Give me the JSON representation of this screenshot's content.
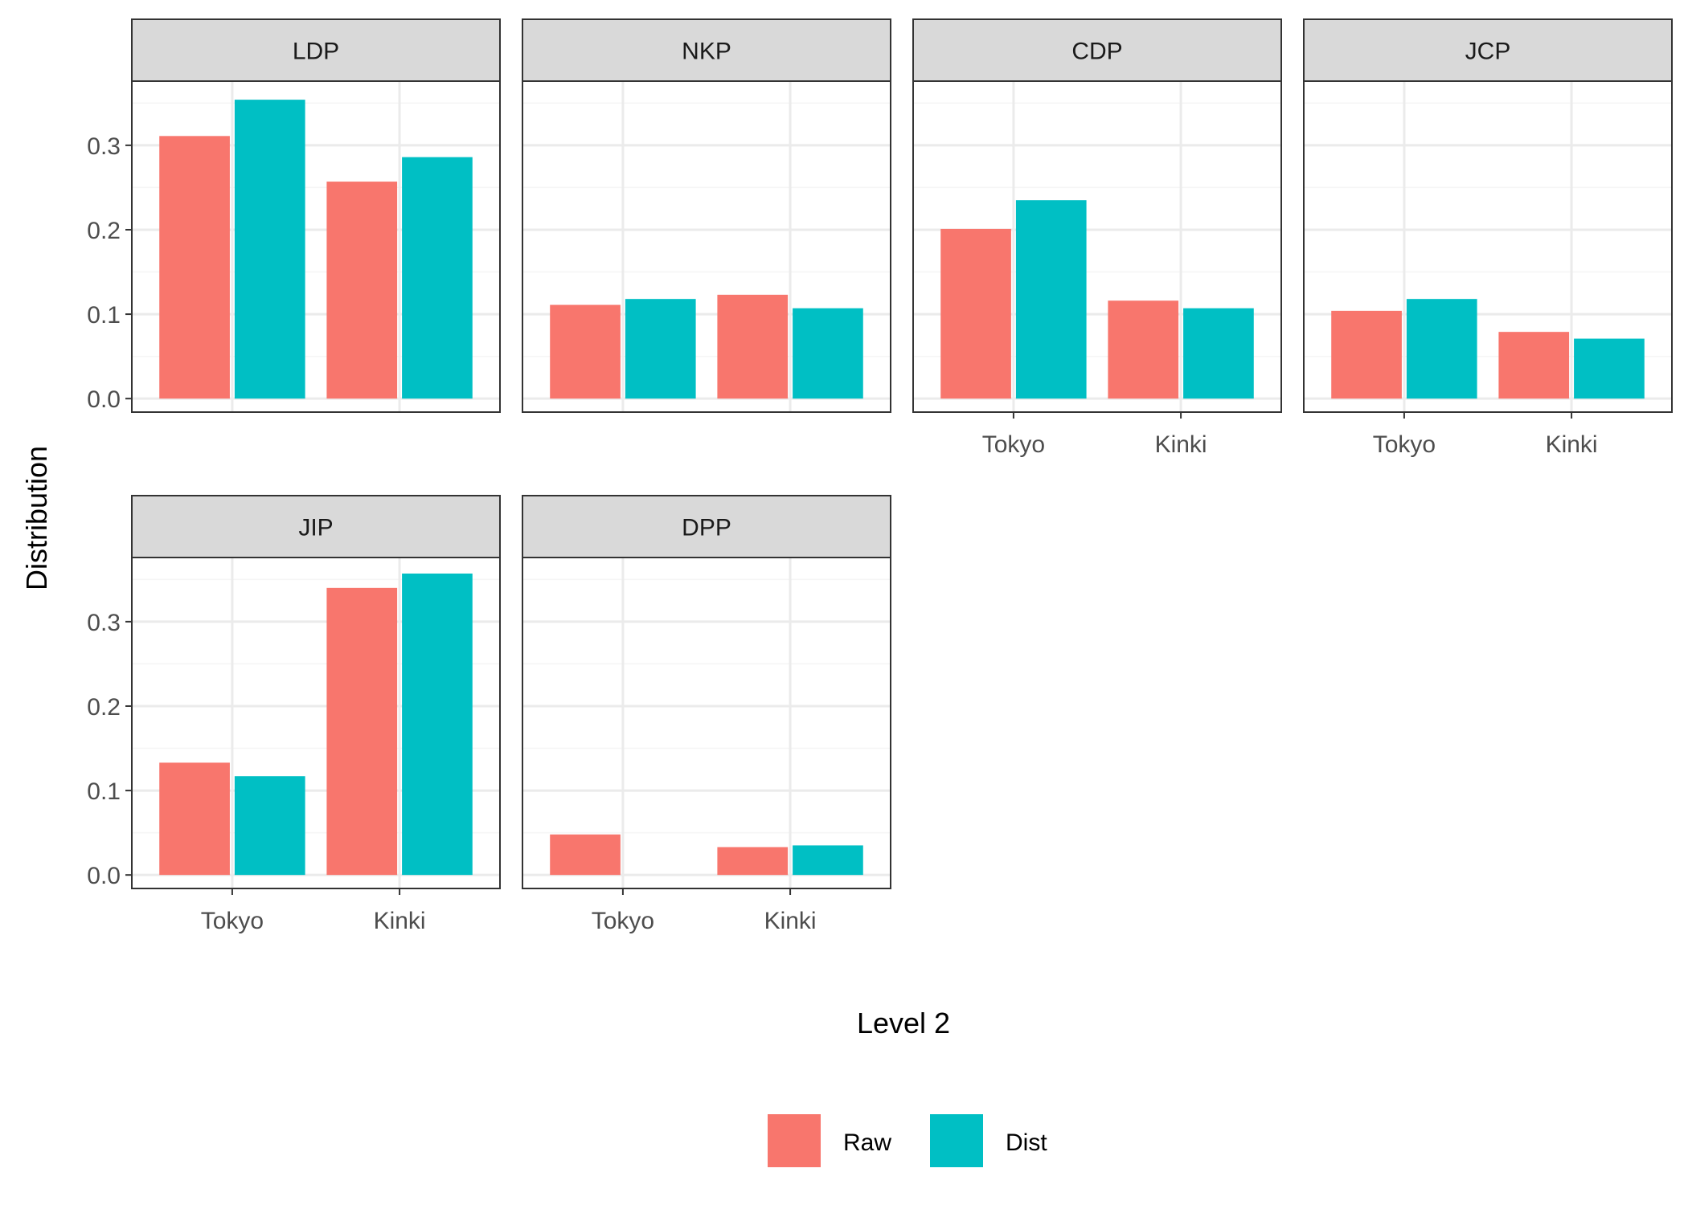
{
  "chart_data": {
    "type": "bar",
    "layout": "faceted",
    "xlabel": "Level 2",
    "ylabel": "Distribution",
    "ylim": [
      -0.016,
      0.376
    ],
    "yticks": [
      0.0,
      0.1,
      0.2,
      0.3
    ],
    "ytick_labels": [
      "0.0",
      "0.1",
      "0.2",
      "0.3"
    ],
    "minor_yticks": [
      0.05,
      0.15,
      0.25,
      0.35
    ],
    "categories": [
      "Tokyo",
      "Kinki"
    ],
    "grid": true,
    "legend_position": "bottom",
    "series_names": [
      "Raw",
      "Dist"
    ],
    "colors": {
      "Raw": "#F8766D",
      "Dist": "#00BFC4",
      "strip_fill": "#D9D9D9",
      "panel_border": "#333333",
      "grid_major": "#EBEBEB",
      "grid_minor": "#F5F5F5"
    },
    "panels": [
      {
        "name": "LDP",
        "Raw": [
          0.311,
          0.257
        ],
        "Dist": [
          0.354,
          0.286
        ]
      },
      {
        "name": "NKP",
        "Raw": [
          0.111,
          0.123
        ],
        "Dist": [
          0.118,
          0.107
        ]
      },
      {
        "name": "CDP",
        "Raw": [
          0.201,
          0.116
        ],
        "Dist": [
          0.235,
          0.107
        ]
      },
      {
        "name": "JCP",
        "Raw": [
          0.104,
          0.079
        ],
        "Dist": [
          0.118,
          0.071
        ]
      },
      {
        "name": "JIP",
        "Raw": [
          0.133,
          0.34
        ],
        "Dist": [
          0.117,
          0.357
        ]
      },
      {
        "name": "DPP",
        "Raw": [
          0.048,
          0.033
        ],
        "Dist": [
          0.0,
          0.035
        ]
      }
    ]
  }
}
